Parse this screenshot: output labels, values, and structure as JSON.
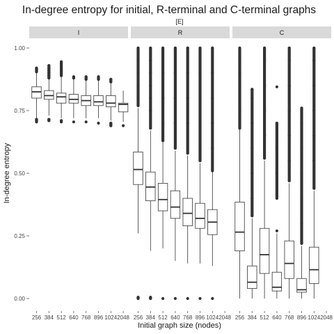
{
  "chart_data": {
    "type": "boxplot",
    "title": "In-degree entropy for initial, R-terminal and C-terminal graphs",
    "facet_label": "[E]",
    "xlabel": "Initial graph size (nodes)",
    "ylabel": "In-degree entropy",
    "ylim": [
      0.0,
      1.0
    ],
    "y_ticks": [
      "0.00",
      "0.25",
      "0.50",
      "0.75",
      "1.00"
    ],
    "y_tick_values": [
      0.0,
      0.25,
      0.5,
      0.75,
      1.0
    ],
    "categories": [
      "256",
      "384",
      "512",
      "640",
      "768",
      "896",
      "1024",
      "2048"
    ],
    "grid": false,
    "colors": {
      "panel_strip": "#d9d9d9",
      "box_line": "#333333",
      "outlier": "#333333"
    },
    "panels": [
      {
        "label": "I",
        "boxes": [
          {
            "x": "256",
            "whisker_low": 0.72,
            "q1": 0.8,
            "median": 0.825,
            "q3": 0.845,
            "whisker_high": 0.905,
            "outliers": [
              0.705,
              0.71,
              0.715,
              0.905,
              0.91,
              0.915,
              0.92
            ]
          },
          {
            "x": "384",
            "whisker_low": 0.73,
            "q1": 0.795,
            "median": 0.81,
            "q3": 0.83,
            "whisker_high": 0.88,
            "outliers": [
              0.71,
              0.715,
              0.88,
              0.89,
              0.9,
              0.91,
              0.92,
              0.93
            ]
          },
          {
            "x": "512",
            "whisker_low": 0.72,
            "q1": 0.78,
            "median": 0.805,
            "q3": 0.82,
            "whisker_high": 0.89,
            "outliers": [
              0.705,
              0.71,
              0.89,
              0.9,
              0.91,
              0.945
            ]
          },
          {
            "x": "640",
            "whisker_low": 0.72,
            "q1": 0.78,
            "median": 0.795,
            "q3": 0.815,
            "whisker_high": 0.875,
            "outliers": [
              0.705,
              0.88,
              0.885
            ]
          },
          {
            "x": "768",
            "whisker_low": 0.72,
            "q1": 0.77,
            "median": 0.79,
            "q3": 0.81,
            "whisker_high": 0.87,
            "outliers": [
              0.705,
              0.875,
              0.885
            ]
          },
          {
            "x": "896",
            "whisker_low": 0.72,
            "q1": 0.77,
            "median": 0.785,
            "q3": 0.81,
            "whisker_high": 0.87,
            "outliers": [
              0.7,
              0.875,
              0.885
            ]
          },
          {
            "x": "1024",
            "whisker_low": 0.71,
            "q1": 0.765,
            "median": 0.78,
            "q3": 0.81,
            "whisker_high": 0.86,
            "outliers": [
              0.69,
              0.7,
              0.865,
              0.875
            ]
          },
          {
            "x": "2048",
            "whisker_low": 0.705,
            "q1": 0.745,
            "median": 0.775,
            "q3": 0.78,
            "whisker_high": 0.83,
            "outliers": [
              0.69
            ]
          }
        ]
      },
      {
        "label": "R",
        "boxes": [
          {
            "x": "256",
            "whisker_low": 0.26,
            "q1": 0.455,
            "median": 0.515,
            "q3": 0.585,
            "whisker_high": 0.76,
            "outliers": [
              0.0,
              0.005,
              0.77,
              0.8,
              0.85,
              0.9,
              0.95,
              1.0
            ]
          },
          {
            "x": "384",
            "whisker_low": 0.19,
            "q1": 0.39,
            "median": 0.445,
            "q3": 0.505,
            "whisker_high": 0.67,
            "outliers": [
              0.0,
              0.005,
              0.68,
              0.75,
              0.8,
              0.85,
              0.9,
              0.95,
              1.0
            ]
          },
          {
            "x": "512",
            "whisker_low": 0.2,
            "q1": 0.35,
            "median": 0.395,
            "q3": 0.46,
            "whisker_high": 0.625,
            "outliers": [
              0.0,
              0.63,
              0.7,
              0.8,
              0.9,
              1.0
            ]
          },
          {
            "x": "640",
            "whisker_low": 0.15,
            "q1": 0.32,
            "median": 0.365,
            "q3": 0.43,
            "whisker_high": 0.59,
            "outliers": [
              0.0,
              0.6,
              0.7,
              0.8,
              0.9,
              1.0
            ]
          },
          {
            "x": "768",
            "whisker_low": 0.14,
            "q1": 0.29,
            "median": 0.34,
            "q3": 0.4,
            "whisker_high": 0.57,
            "outliers": [
              0.0,
              0.58,
              0.7,
              0.8,
              0.9,
              1.0
            ]
          },
          {
            "x": "896",
            "whisker_low": 0.14,
            "q1": 0.28,
            "median": 0.32,
            "q3": 0.38,
            "whisker_high": 0.54,
            "outliers": [
              0.0,
              0.55,
              0.6,
              0.7,
              0.8,
              0.9,
              1.0
            ]
          },
          {
            "x": "1024",
            "whisker_low": 0.13,
            "q1": 0.255,
            "median": 0.305,
            "q3": 0.355,
            "whisker_high": 0.505,
            "outliers": [
              0.0,
              0.51,
              0.6,
              0.7,
              0.8,
              0.9,
              1.0
            ]
          }
        ]
      },
      {
        "label": "C",
        "boxes": [
          {
            "x": "256",
            "whisker_low": 0.0,
            "q1": 0.19,
            "median": 0.265,
            "q3": 0.385,
            "whisker_high": 0.675,
            "outliers": [
              0.68,
              0.75,
              0.85,
              0.9,
              0.95,
              1.0
            ]
          },
          {
            "x": "384",
            "whisker_low": 0.0,
            "q1": 0.04,
            "median": 0.065,
            "q3": 0.13,
            "whisker_high": 0.32,
            "outliers": [
              0.33,
              0.4,
              0.5,
              0.6,
              0.7,
              0.8,
              0.835
            ]
          },
          {
            "x": "512",
            "whisker_low": 0.0,
            "q1": 0.1,
            "median": 0.175,
            "q3": 0.28,
            "whisker_high": 0.55,
            "outliers": [
              0.56,
              0.65,
              0.75,
              0.85,
              0.95,
              1.0
            ]
          },
          {
            "x": "640",
            "whisker_low": 0.0,
            "q1": 0.03,
            "median": 0.045,
            "q3": 0.105,
            "whisker_high": 0.26,
            "outliers": [
              0.27,
              0.4,
              0.5,
              0.6,
              0.7,
              0.845
            ]
          },
          {
            "x": "768",
            "whisker_low": 0.0,
            "q1": 0.08,
            "median": 0.14,
            "q3": 0.23,
            "whisker_high": 0.46,
            "outliers": [
              0.47,
              0.55,
              0.65,
              0.75,
              0.85,
              0.95,
              1.0
            ]
          },
          {
            "x": "896",
            "whisker_low": 0.0,
            "q1": 0.025,
            "median": 0.035,
            "q3": 0.08,
            "whisker_high": 0.21,
            "outliers": [
              0.22,
              0.3,
              0.4,
              0.5,
              0.6,
              0.7,
              0.76
            ]
          },
          {
            "x": "1024",
            "whisker_low": 0.0,
            "q1": 0.06,
            "median": 0.115,
            "q3": 0.205,
            "whisker_high": 0.43,
            "outliers": [
              0.44,
              0.55,
              0.65,
              0.75,
              0.85,
              0.95,
              1.0
            ]
          }
        ]
      }
    ]
  }
}
